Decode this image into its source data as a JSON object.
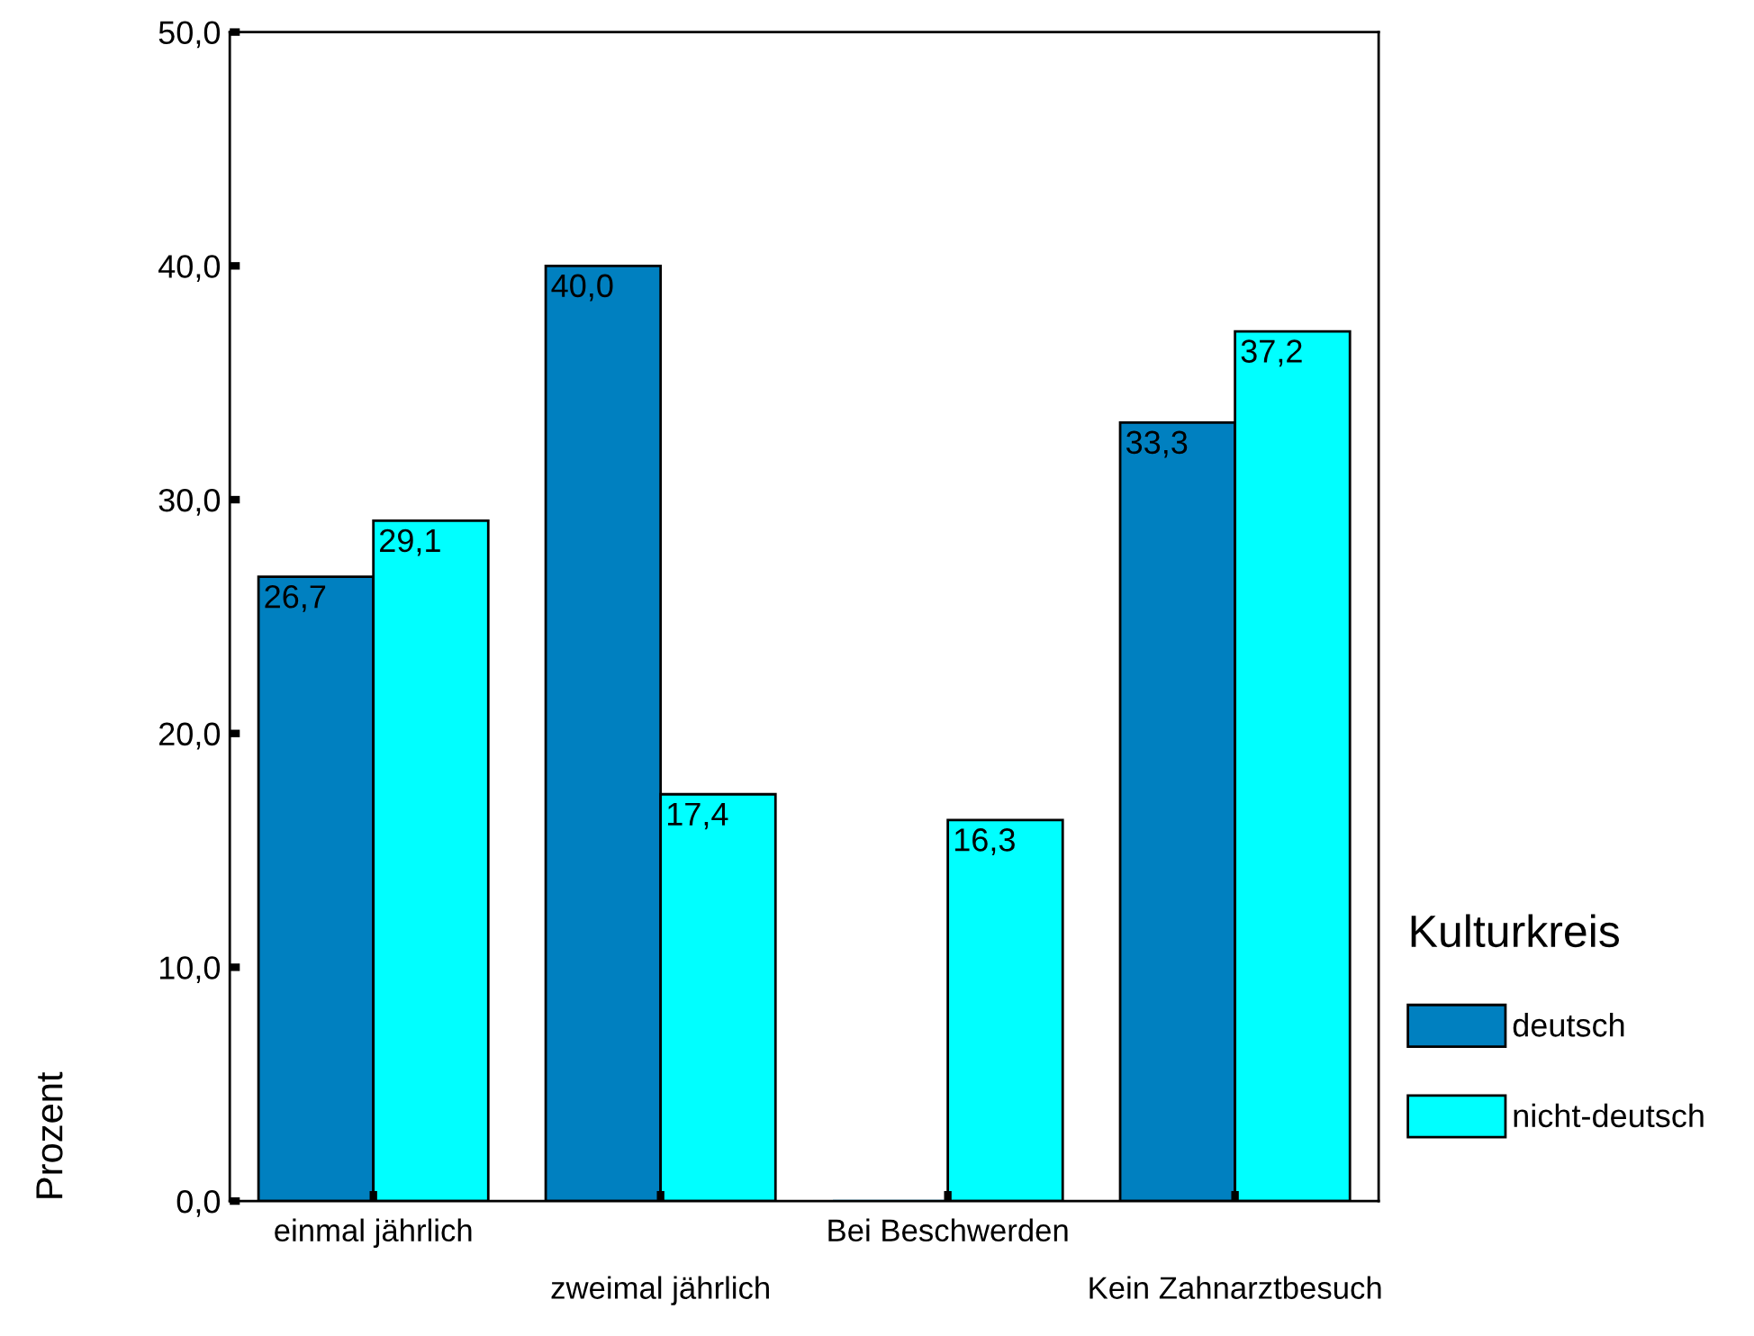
{
  "chart_data": {
    "type": "bar",
    "ylabel": "Prozent",
    "legend_title": "Kulturkreis",
    "categories": [
      "einmal jährlich",
      "zweimal jährlich",
      "Bei Beschwerden",
      "Kein Zahnarztbesuch"
    ],
    "series": [
      {
        "name": "deutsch",
        "color": "#0080c0",
        "values": [
          26.7,
          40.0,
          0,
          33.3
        ],
        "value_labels": [
          "26,7",
          "40,0",
          null,
          "33,3"
        ]
      },
      {
        "name": "nicht-deutsch",
        "color": "#00ffff",
        "values": [
          29.1,
          17.4,
          16.3,
          37.2
        ],
        "value_labels": [
          "29,1",
          "17,4",
          "16,3",
          "37,2"
        ]
      }
    ],
    "ylim": [
      0,
      50
    ],
    "yticks": [
      {
        "value": 0,
        "label": "0,0"
      },
      {
        "value": 10,
        "label": "10,0"
      },
      {
        "value": 20,
        "label": "20,0"
      },
      {
        "value": 30,
        "label": "30,0"
      },
      {
        "value": 40,
        "label": "40,0"
      },
      {
        "value": 50,
        "label": "50,0"
      }
    ],
    "grid": false,
    "legend": "right"
  }
}
